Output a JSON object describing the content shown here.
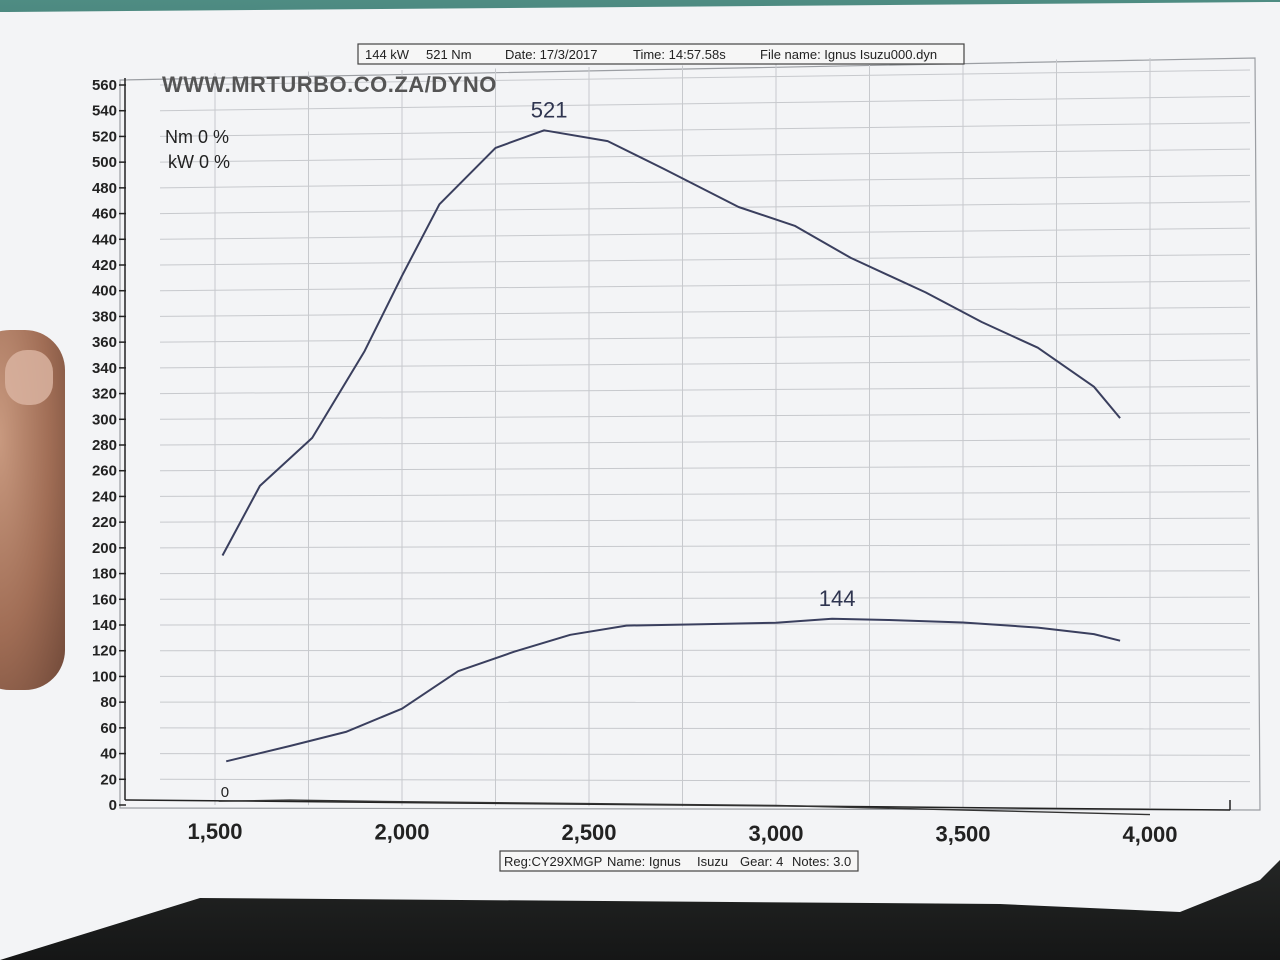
{
  "header": {
    "power": "144 kW",
    "torque": "521 Nm",
    "date": "Date: 17/3/2017",
    "time": "Time: 14:57.58s",
    "filename": "File name: Ignus Isuzu000.dyn"
  },
  "footer": {
    "reg": "Reg:CY29XMGP",
    "name": "Name: Ignus",
    "make": "Isuzu",
    "gear": "Gear: 4",
    "notes": "Notes: 3.0"
  },
  "website": "WWW.MRTURBO.CO.ZA/DYNO",
  "legend": {
    "nm": "Nm 0 %",
    "kw": "kW 0 %"
  },
  "chart_data": {
    "type": "line",
    "title": "",
    "xlabel": "",
    "ylabel": "",
    "xlim": [
      1500,
      4000
    ],
    "ylim": [
      0,
      560
    ],
    "x_ticks": [
      "1,500",
      "2,000",
      "2,500",
      "3,000",
      "3,500",
      "4,000"
    ],
    "y_ticks": [
      "0",
      "20",
      "40",
      "60",
      "80",
      "100",
      "120",
      "140",
      "160",
      "180",
      "200",
      "220",
      "240",
      "260",
      "280",
      "300",
      "320",
      "340",
      "360",
      "380",
      "400",
      "420",
      "440",
      "460",
      "480",
      "500",
      "520",
      "540",
      "560"
    ],
    "grid": true,
    "series": [
      {
        "name": "Nm",
        "peak_label": "521",
        "peak_x": 2380,
        "color": "#3a3f5e",
        "x": [
          1520,
          1620,
          1760,
          1900,
          2000,
          2100,
          2250,
          2380,
          2550,
          2700,
          2900,
          3050,
          3200,
          3400,
          3550,
          3700,
          3850,
          3920
        ],
        "y": [
          194,
          248,
          285,
          352,
          410,
          465,
          508,
          521,
          512,
          490,
          460,
          445,
          420,
          393,
          370,
          350,
          320,
          296
        ]
      },
      {
        "name": "kW",
        "peak_label": "144",
        "peak_x": 3150,
        "color": "#3a3f5e",
        "x": [
          1530,
          1700,
          1850,
          2000,
          2150,
          2300,
          2450,
          2600,
          2800,
          3000,
          3150,
          3300,
          3500,
          3700,
          3850,
          3920
        ],
        "y": [
          34,
          46,
          57,
          75,
          104,
          119,
          132,
          139,
          140,
          141,
          144,
          143,
          141,
          137,
          132,
          127
        ]
      },
      {
        "name": "0",
        "color": "#333",
        "x": [
          1510,
          1700,
          2000,
          2500,
          3000,
          3500,
          4000
        ],
        "y": [
          3,
          4,
          3,
          2,
          1,
          -2,
          -5
        ]
      }
    ]
  }
}
